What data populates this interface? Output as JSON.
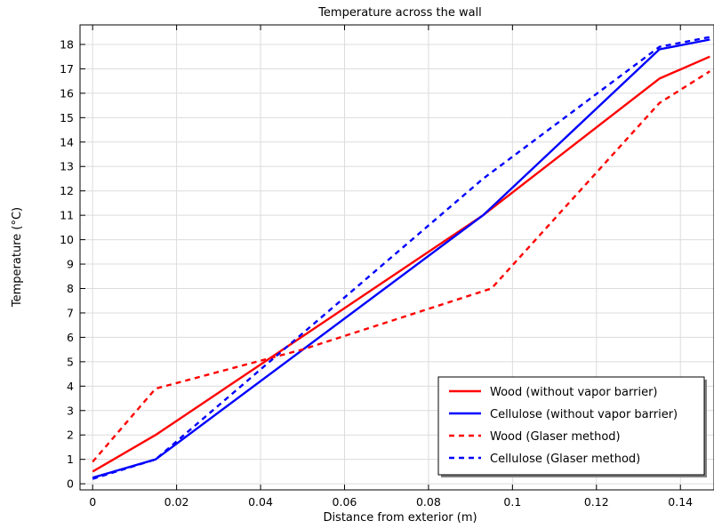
{
  "chart_data": {
    "type": "line",
    "title": "Temperature across the wall",
    "xlabel": "Distance from exterior (m)",
    "ylabel": "Temperature (°C)",
    "xlim": [
      -0.003,
      0.148
    ],
    "ylim": [
      -0.25,
      18.8
    ],
    "x_ticks": [
      0,
      0.02,
      0.04,
      0.06,
      0.08,
      0.1,
      0.12,
      0.14
    ],
    "x_tick_labels": [
      "0",
      "0.02",
      "0.04",
      "0.06",
      "0.08",
      "0.1",
      "0.12",
      "0.14"
    ],
    "y_ticks": [
      0,
      1,
      2,
      3,
      4,
      5,
      6,
      7,
      8,
      9,
      10,
      11,
      12,
      13,
      14,
      15,
      16,
      17,
      18
    ],
    "y_tick_labels": [
      "0",
      "1",
      "2",
      "3",
      "4",
      "5",
      "6",
      "7",
      "8",
      "9",
      "10",
      "11",
      "12",
      "13",
      "14",
      "15",
      "16",
      "17",
      "18"
    ],
    "grid": true,
    "legend_position": "bottom-right",
    "series": [
      {
        "name": "Wood (without vapor barrier)",
        "color": "#ff0000",
        "dash": "solid",
        "points": [
          [
            0,
            0.5
          ],
          [
            0.015,
            2.0
          ],
          [
            0.093,
            11.0
          ],
          [
            0.135,
            16.6
          ],
          [
            0.147,
            17.5
          ]
        ]
      },
      {
        "name": "Cellulose (without vapor barrier)",
        "color": "#0000ff",
        "dash": "solid",
        "points": [
          [
            0,
            0.25
          ],
          [
            0.015,
            1.0
          ],
          [
            0.093,
            11.0
          ],
          [
            0.135,
            17.8
          ],
          [
            0.147,
            18.2
          ]
        ]
      },
      {
        "name": "Wood (Glaser method)",
        "color": "#ff0000",
        "dash": "dashed",
        "points": [
          [
            0,
            0.9
          ],
          [
            0.015,
            3.9
          ],
          [
            0.05,
            5.5
          ],
          [
            0.095,
            8.0
          ],
          [
            0.135,
            15.6
          ],
          [
            0.147,
            16.9
          ]
        ]
      },
      {
        "name": "Cellulose (Glaser method)",
        "color": "#0000ff",
        "dash": "dashed",
        "points": [
          [
            0,
            0.2
          ],
          [
            0.015,
            1.0
          ],
          [
            0.093,
            12.5
          ],
          [
            0.135,
            17.9
          ],
          [
            0.147,
            18.3
          ]
        ]
      }
    ]
  }
}
